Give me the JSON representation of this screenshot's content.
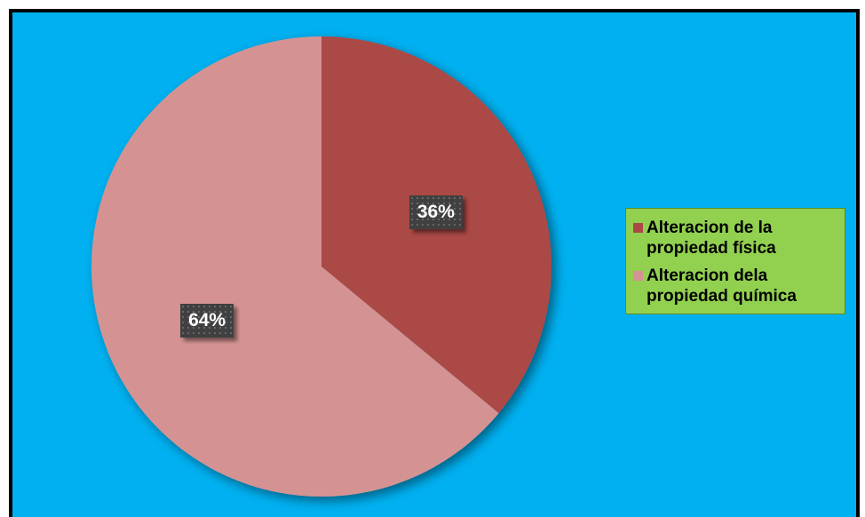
{
  "chart_data": {
    "type": "pie",
    "title": "",
    "categories": [
      "Alteracion de la propiedad física",
      "Alteracion dela propiedad química"
    ],
    "values": [
      36,
      64
    ],
    "value_labels": [
      "36%",
      "64%"
    ],
    "colors": [
      "#ab4846",
      "#d49392"
    ],
    "start_angle_deg": 0,
    "direction": "clockwise",
    "legend_placement": "right",
    "background_color": "#00b0f0",
    "legend_background_color": "#92d050"
  }
}
